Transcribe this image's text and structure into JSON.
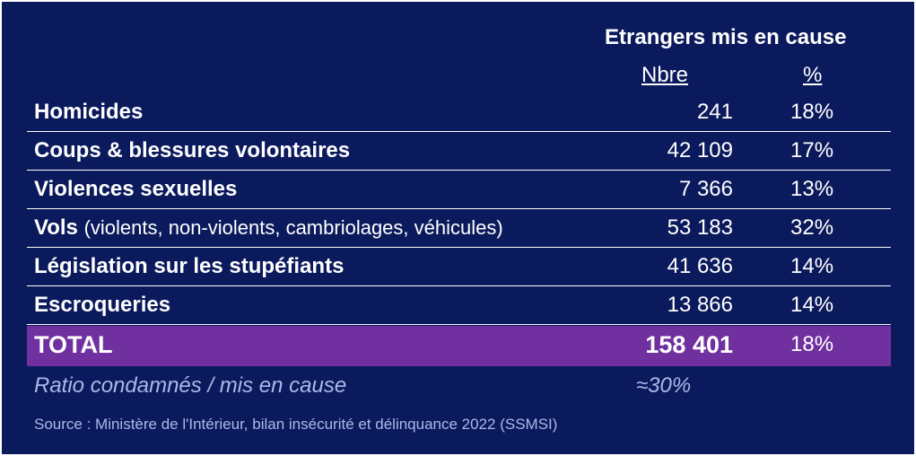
{
  "header": {
    "title": "Etrangers mis en cause",
    "col_nbre": "Nbre",
    "col_pct": "%"
  },
  "rows": [
    {
      "label": "Homicides",
      "sub": "",
      "nbre": "241",
      "pct": "18%"
    },
    {
      "label": "Coups & blessures volontaires",
      "sub": "",
      "nbre": "42 109",
      "pct": "17%"
    },
    {
      "label": "Violences sexuelles",
      "sub": "",
      "nbre": "7 366",
      "pct": "13%"
    },
    {
      "label": "Vols",
      "sub": "(violents, non-violents, cambriolages, véhicules)",
      "nbre": "53 183",
      "pct": "32%"
    },
    {
      "label": "Législation sur les stupéfiants",
      "sub": "",
      "nbre": "41 636",
      "pct": "14%"
    },
    {
      "label": "Escroqueries",
      "sub": "",
      "nbre": "13 866",
      "pct": "14%"
    }
  ],
  "total": {
    "label": "TOTAL",
    "nbre": "158 401",
    "pct": "18%"
  },
  "ratio": {
    "label": "Ratio condamnés / mis en cause",
    "value": "≈30%"
  },
  "source": "Source : Ministère de l'Intérieur, bilan insécurité et délinquance 2022 (SSMSI)",
  "colors": {
    "background": "#0b1a5c",
    "total_row": "#7030a0",
    "muted_text": "#aab8e8"
  }
}
